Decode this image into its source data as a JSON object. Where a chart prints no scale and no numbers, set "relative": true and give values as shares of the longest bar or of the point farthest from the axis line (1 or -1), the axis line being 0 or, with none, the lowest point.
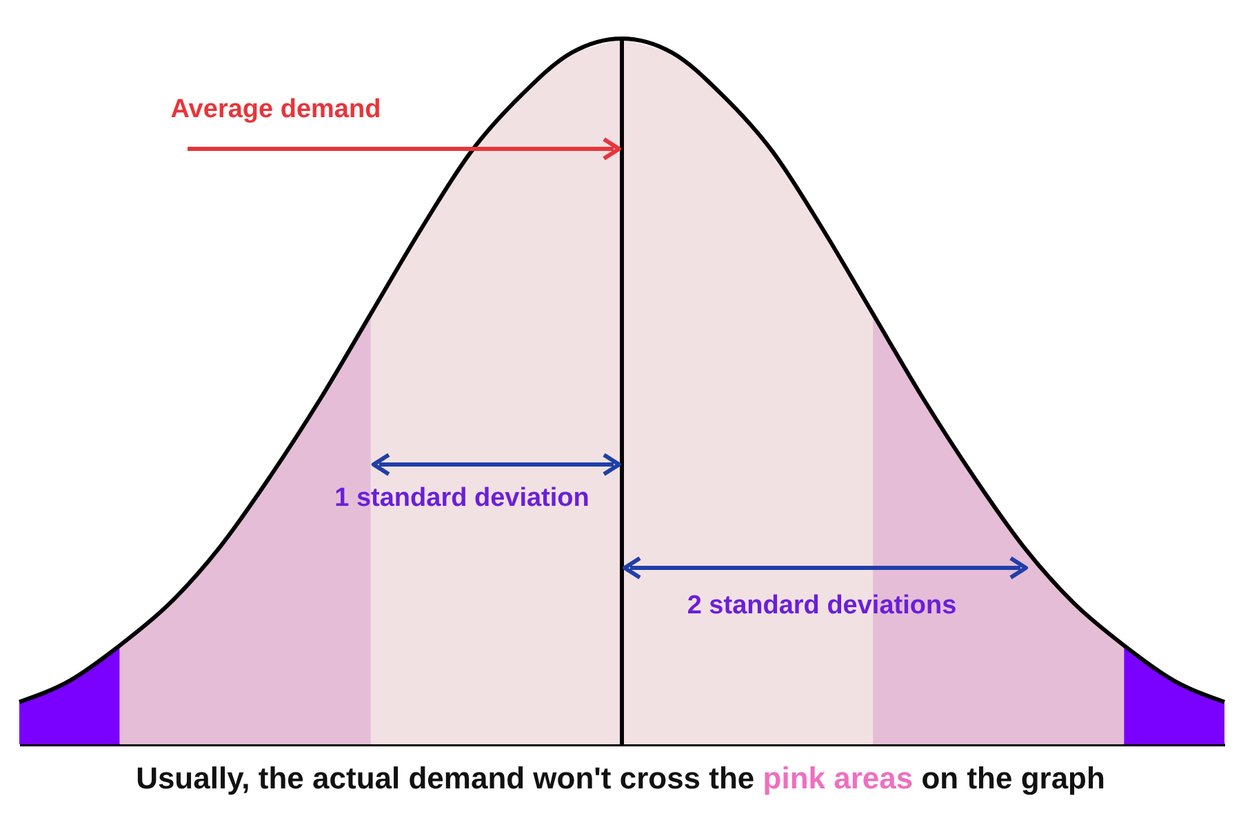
{
  "chart_data": {
    "type": "area",
    "relative": true,
    "categories": [
      null,
      null,
      null,
      null,
      null,
      null,
      null,
      null,
      null,
      null,
      null,
      null,
      null,
      null,
      null,
      null,
      null,
      null,
      null,
      null,
      null,
      null,
      null,
      null,
      null
    ],
    "series": [
      {
        "color": "#7a00ff",
        "values": [
          0.06,
          0.09,
          0.14,
          null,
          null,
          null,
          null,
          null,
          null,
          null,
          null,
          null,
          null,
          null,
          null,
          null,
          null,
          null,
          null,
          null,
          null,
          null,
          null,
          null,
          null
        ]
      },
      {
        "color": "#e5bdd7",
        "values": [
          null,
          null,
          0.14,
          0.2,
          0.28,
          0.38,
          0.49,
          0.61,
          null,
          null,
          null,
          null,
          null,
          null,
          null,
          null,
          null,
          null,
          null,
          null,
          null,
          null,
          null,
          null,
          null
        ]
      },
      {
        "color": "#f2e1e3",
        "values": [
          null,
          null,
          null,
          null,
          null,
          null,
          null,
          0.61,
          0.73,
          0.84,
          0.92,
          0.98,
          1,
          0.98,
          0.92,
          0.84,
          0.73,
          0.61,
          null,
          null,
          null,
          null,
          null,
          null,
          null
        ]
      },
      {
        "color": "#e5bdd7",
        "values": [
          null,
          null,
          null,
          null,
          null,
          null,
          null,
          null,
          null,
          null,
          null,
          null,
          null,
          null,
          null,
          null,
          null,
          0.61,
          0.49,
          0.38,
          0.28,
          0.2,
          0.14,
          null,
          null
        ]
      },
      {
        "color": "#7a00ff",
        "values": [
          null,
          null,
          null,
          null,
          null,
          null,
          null,
          null,
          null,
          null,
          null,
          null,
          null,
          null,
          null,
          null,
          null,
          null,
          null,
          null,
          null,
          null,
          0.14,
          0.09,
          0.06
        ]
      },
      {
        "type": "line",
        "color": "#000000",
        "values": [
          0.06,
          0.09,
          0.14,
          0.2,
          0.28,
          0.38,
          0.49,
          0.61,
          0.73,
          0.84,
          0.92,
          0.98,
          1,
          0.98,
          0.92,
          0.84,
          0.73,
          0.61,
          0.49,
          0.38,
          0.28,
          0.2,
          0.14,
          0.09,
          0.06
        ]
      }
    ],
    "annotations": [
      "Average demand",
      "1 standard deviation",
      "2 standard deviations",
      "Usually, the actual demand won't cross the",
      "pink areas",
      "on the graph"
    ]
  }
}
